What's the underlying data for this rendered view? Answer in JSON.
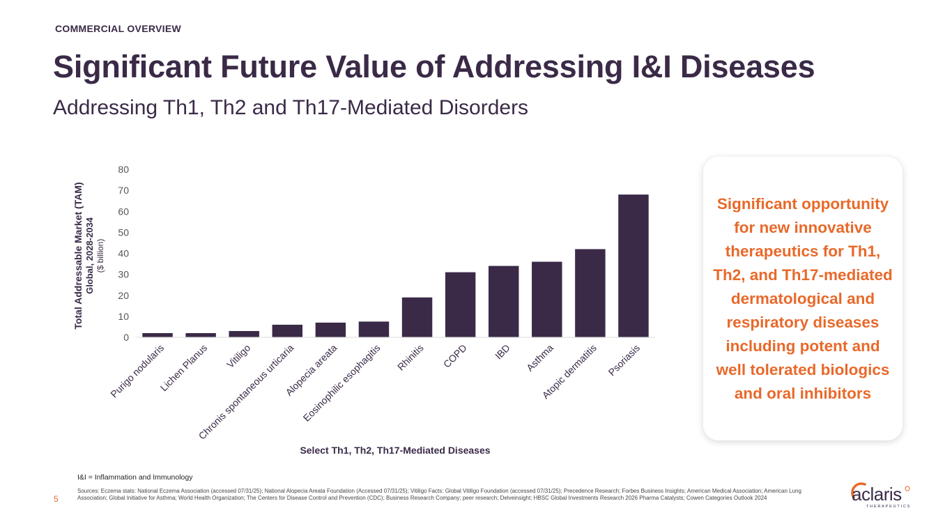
{
  "header": {
    "section": "COMMERCIAL OVERVIEW",
    "title": "Significant Future Value of Addressing I&I Diseases",
    "subtitle": "Addressing Th1, Th2 and Th17-Mediated Disorders"
  },
  "colors": {
    "bar": "#3a2a47",
    "accent": "#e8692a",
    "text": "#3a2a47"
  },
  "chart_data": {
    "type": "bar",
    "title": "",
    "categories": [
      "Purigo nodularis",
      "Lichen Planus",
      "Vitiligo",
      "Chronis spontaneous urticaria",
      "Alopecia areata",
      "Eosinophilic esophagitis",
      "Rhinitis",
      "COPD",
      "IBD",
      "Asthma",
      "Atopic dermatitis",
      "Psoriasis"
    ],
    "values": [
      2,
      2,
      3,
      6,
      7,
      7.5,
      19,
      31,
      34,
      36,
      42,
      68
    ],
    "ylim": [
      0,
      80
    ],
    "yticks": [
      0,
      10,
      20,
      30,
      40,
      50,
      60,
      70,
      80
    ],
    "xlabel": "Select Th1, Th2, Th17-Mediated Diseases",
    "ylabel_lines": [
      "Total Addressable Market (TAM)",
      "Global, 2028-2034",
      "($ billion)"
    ],
    "grid": false,
    "legend": "none"
  },
  "callout": {
    "text": "Significant opportunity for new innovative therapeutics for Th1, Th2, and Th17-mediated dermatological and respiratory diseases including potent and well tolerated biologics and oral inhibitors"
  },
  "footer": {
    "abbreviation": "I&I = Inflammation and Immunology",
    "page_number": "5",
    "sources": "Sources: Eczema stats: National Eczema Association (accessed 07/31/25); National Alopecia Areata Foundation (Accessed 07/31/25); Vitiligo Facts: Global Vitiligo Foundation (accessed 07/31/25); Precedence Research; Forbes Business Insights; American Medical Association; American Lung Association; Global Initiative for Asthma; World Health Organization; The Centers for Disease Control and Prevention (CDC); Business Research Company; peer research; Delveinsight; HBSC Global Investments Research 2026 Pharma Catalysts; Cowen Categories Outlook 2024"
  },
  "logo": {
    "word": "aclaris",
    "tagline": "THERAPEUTICS"
  }
}
